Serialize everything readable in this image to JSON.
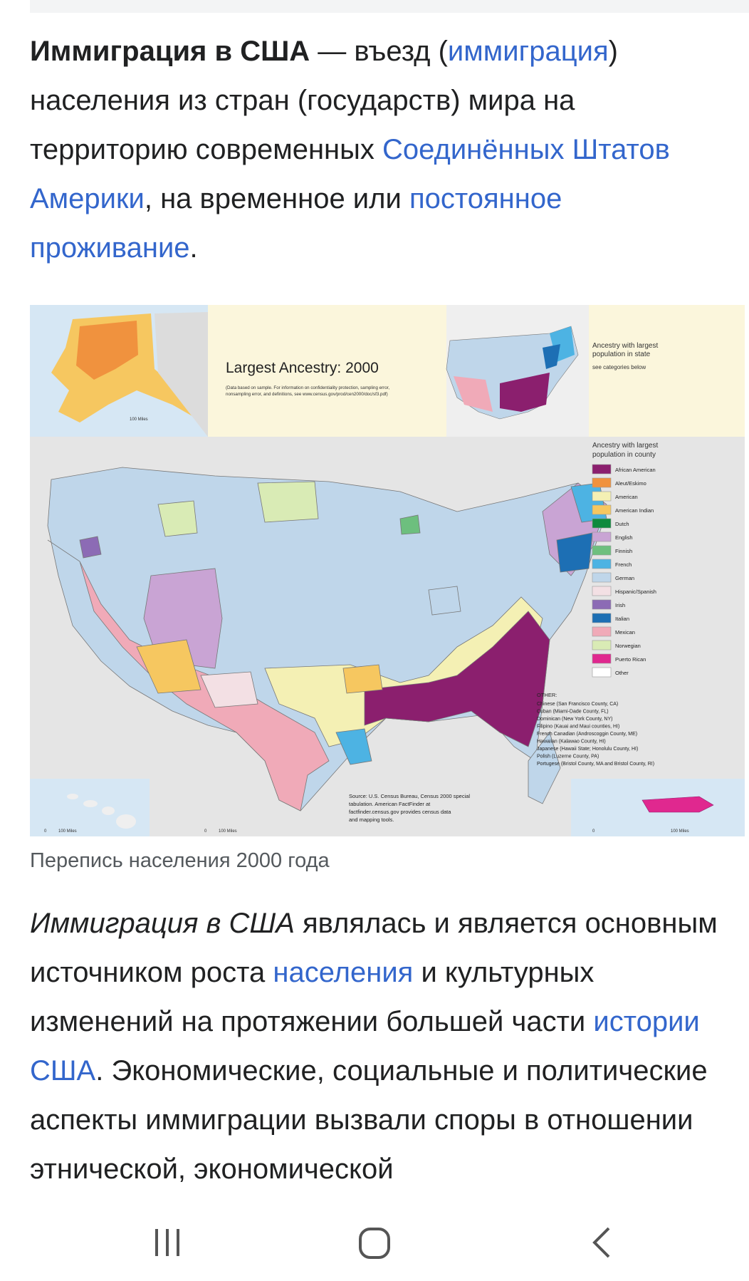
{
  "intro": {
    "title_bold": "Иммиграция в США",
    "t1": " — въезд (",
    "link_immigration": "иммиграция",
    "t2": ") населения из стран (государств) мира на территорию современных ",
    "link_usa": "Соединённых Штатов Америки",
    "t3": ", на временное или ",
    "link_residence": "постоянное проживание",
    "t4": "."
  },
  "figure": {
    "caption": "Перепись населения 2000 года",
    "map_title": "Largest Ancestry: 2000",
    "map_note_1": "(Data based on sample. For information on confidentiality protection, sampling error,",
    "map_note_2": "nonsampling error, and definitions, see www.census.gov/prod/cen2000/doc/sf3.pdf)",
    "state_legend_1": "Ancestry with largest",
    "state_legend_2": "population in state",
    "state_legend_3": "see categories below",
    "county_legend_1": "Ancestry with largest",
    "county_legend_2": "population in county",
    "legend": [
      {
        "label": "African American",
        "color": "#8b1f6e"
      },
      {
        "label": "Aleut/Eskimo",
        "color": "#f0923e"
      },
      {
        "label": "American",
        "color": "#f4f0b4"
      },
      {
        "label": "American Indian",
        "color": "#f6c760"
      },
      {
        "label": "Dutch",
        "color": "#0e8a3d"
      },
      {
        "label": "English",
        "color": "#c9a4d4"
      },
      {
        "label": "Finnish",
        "color": "#6dbf7e"
      },
      {
        "label": "French",
        "color": "#4db3e3"
      },
      {
        "label": "German",
        "color": "#bfd6ea"
      },
      {
        "label": "Hispanic/Spanish",
        "color": "#f3e0e4"
      },
      {
        "label": "Irish",
        "color": "#8c6bb5"
      },
      {
        "label": "Italian",
        "color": "#1d6fb4"
      },
      {
        "label": "Mexican",
        "color": "#f0aab8"
      },
      {
        "label": "Norwegian",
        "color": "#d9ebb5"
      },
      {
        "label": "Puerto Rican",
        "color": "#e0288f"
      },
      {
        "label": "Other",
        "color": "#ffffff"
      }
    ],
    "other_title": "OTHER:",
    "other_items": [
      "Chinese (San Francisco County, CA)",
      "Cuban (Miami-Dade County, FL)",
      "Dominican (New York County, NY)",
      "Filipino (Kauai and Maui counties, HI)",
      "French Canadian (Androscoggin County, ME)",
      "Hawaiian (Kalawao County, HI)",
      "Japanese (Hawaii State; Honolulu County, HI)",
      "Polish (Luzerne County, PA)",
      "Portugese (Bristol County, MA and Bristol County, RI)"
    ],
    "source_1": "Source: U.S. Census Bureau, Census 2000 special",
    "source_2": "tabulation. American FactFinder at",
    "source_3": "factfinder.census.gov provides census data",
    "source_4": "and mapping tools.",
    "scale_label": "100 Miles",
    "scale_zero": "0"
  },
  "body": {
    "italic": "Иммиграция в США",
    "t1": " являлась и является основным источником роста ",
    "link_population": "населения",
    "t2": " и культурных изменений на протяжении большей части ",
    "link_history": "истории США",
    "t3": ". Экономические, социальные и политические аспекты иммиграции вызвали споры в отношении этнической, экономической"
  },
  "navbar": {
    "recents": "recent-apps-icon",
    "home": "home-icon",
    "back": "back-icon"
  }
}
